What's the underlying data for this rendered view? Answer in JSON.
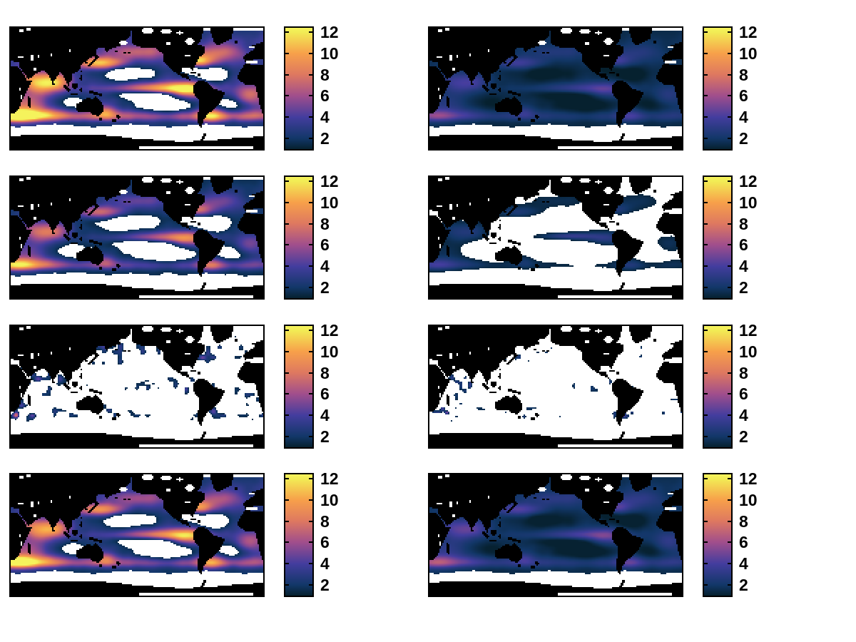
{
  "figure": {
    "background": "#ffffff",
    "description": "MATLAB-style figure with a 4x2 grid of Pacific-centered global ocean heatmaps; land is black, missing data is white; each subplot has its own vertical colorbar on the right.",
    "other_text": "No titles, axis labels or tick labels are visible other than the colorbar numbers."
  },
  "chart_data": {
    "type": "heatmap",
    "grid": {
      "rows": 4,
      "cols": 2
    },
    "projection": "equirectangular, Pacific-centered (lon 20E to 380E), lat 85N to 85S",
    "land_color": "#000000",
    "missing_color": "#ffffff",
    "colormap": {
      "name": "thermal (cmocean-like: dark navy - indigo - magenta - orange - yellow)",
      "stops": [
        {
          "t": 0.0,
          "color": "#06212F"
        },
        {
          "t": 0.088,
          "color": "#123768"
        },
        {
          "t": 0.263,
          "color": "#433D9E"
        },
        {
          "t": 0.439,
          "color": "#A04E8C"
        },
        {
          "t": 0.614,
          "color": "#DE7860"
        },
        {
          "t": 0.789,
          "color": "#F7A04A"
        },
        {
          "t": 0.965,
          "color": "#F2EC55"
        },
        {
          "t": 1.0,
          "color": "#F5F35C"
        }
      ]
    },
    "colorbar": {
      "orientation": "vertical",
      "side": "right-of-each-panel",
      "range": [
        1,
        12.4
      ],
      "ticks": [
        "2",
        "4",
        "6",
        "8",
        "10",
        "12"
      ],
      "tick_values": [
        2,
        4,
        6,
        8,
        10,
        12
      ]
    },
    "panels": [
      {
        "id": "r1c1",
        "grid_pos": "row 1, left",
        "appearance": "high values ~2-12; bright yellow/orange hotspots in Kuroshio, Arabian Sea, Agulhas, Gulf Stream and equatorial east Pacific; white subtropical-gyre patches; white south of ~50S",
        "offset": 0.9,
        "gain": 7.8,
        "nan_threshold": 1.55,
        "mode": "smooth"
      },
      {
        "id": "r1c2",
        "grid_pos": "row 1, right",
        "appearance": "low values ~1.5-4; dark navy ocean with indigo-purple patches; white Southern Ocean band",
        "offset": 1.0,
        "gain": 2.1,
        "nan_threshold": 0.85,
        "mode": "smooth"
      },
      {
        "id": "r2c1",
        "grid_pos": "row 2, left",
        "appearance": "moderate patchy values ~2-7; purple-pink North Pacific and eastern equatorial Pacific; large white gyre regions",
        "offset": 0.55,
        "gain": 5.2,
        "nan_threshold": 1.5,
        "mode": "smooth"
      },
      {
        "id": "r2c2",
        "grid_pos": "row 2, right",
        "appearance": "mostly white ocean; sparse dark-navy patches ~1.5-2.5 including an equatorial Pacific streak",
        "offset": 0.35,
        "gain": 1.55,
        "nan_threshold": 1.3,
        "mode": "smooth",
        "eq_streak": true
      },
      {
        "id": "r3c1",
        "grid_pos": "row 3, left",
        "appearance": "mostly white; thin dark filaments along currents; small blue-purple patch in NW subarctic Pacific",
        "offset": 0.3,
        "gain": 3.4,
        "nan_threshold": 1.45,
        "mode": "filament",
        "nw_spot": true
      },
      {
        "id": "r3c2",
        "grid_pos": "row 3, right",
        "appearance": "almost entirely white ocean with only tiny dark specks",
        "offset": 0.2,
        "gain": 3.0,
        "nan_threshold": 1.5,
        "mode": "filament2"
      },
      {
        "id": "r4c1",
        "grid_pos": "row 4, left",
        "appearance": "similar to row 1 left but weaker; orange spots in Kuroshio/Indian Ocean/Atlantic; more white in gyres",
        "offset": 0.8,
        "gain": 6.6,
        "nan_threshold": 1.55,
        "mode": "smooth"
      },
      {
        "id": "r4c2",
        "grid_pos": "row 4, right",
        "appearance": "similar to row 1 right, slightly more purple coverage",
        "offset": 1.05,
        "gain": 2.5,
        "nan_threshold": 0.85,
        "mode": "smooth"
      }
    ]
  }
}
